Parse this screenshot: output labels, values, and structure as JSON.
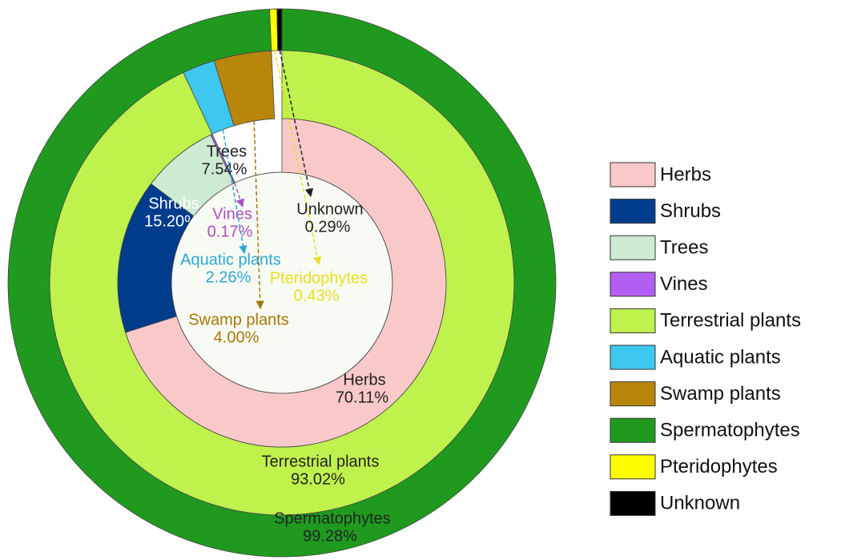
{
  "chart_data": {
    "type": "nested-donut",
    "rings": [
      {
        "categories": [
          "Herbs",
          "Shrubs",
          "Trees",
          "Vines"
        ],
        "values": [
          70.11,
          15.2,
          7.54,
          0.17
        ],
        "value_labels": [
          "70.11%",
          "15.20%",
          "7.54%",
          "0.17%"
        ],
        "colors": [
          "#f9c9c9",
          "#003c8c",
          "#cdebd2",
          "#b35ef2"
        ]
      },
      {
        "categories": [
          "Terrestrial plants",
          "Aquatic plants",
          "Swamp plants"
        ],
        "values": [
          93.02,
          2.26,
          4.0
        ],
        "value_labels": [
          "93.02%",
          "2.26%",
          "4.00%"
        ],
        "colors": [
          "#bff24c",
          "#3ec8f0",
          "#b8860b"
        ]
      },
      {
        "categories": [
          "Spermatophytes",
          "Pteridophytes",
          "Unknown"
        ],
        "values": [
          99.28,
          0.43,
          0.29
        ],
        "value_labels": [
          "99.28%",
          "0.43%",
          "0.29%"
        ],
        "colors": [
          "#1f9a1f",
          "#ffff00",
          "#000000"
        ]
      }
    ]
  }
}
